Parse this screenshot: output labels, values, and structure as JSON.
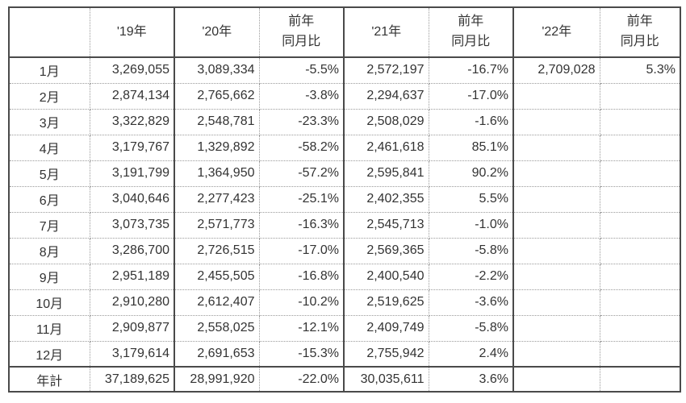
{
  "chart_data": {
    "type": "table",
    "columns": [
      "",
      "'19年",
      "'20年",
      "前年\n同月比",
      "'21年",
      "前年\n同月比",
      "'22年",
      "前年\n同月比"
    ],
    "rows": [
      {
        "label": "1月",
        "values": [
          "3,269,055",
          "3,089,334",
          "-5.5%",
          "2,572,197",
          "-16.7%",
          "2,709,028",
          "5.3%"
        ]
      },
      {
        "label": "2月",
        "values": [
          "2,874,134",
          "2,765,662",
          "-3.8%",
          "2,294,637",
          "-17.0%",
          "",
          ""
        ]
      },
      {
        "label": "3月",
        "values": [
          "3,322,829",
          "2,548,781",
          "-23.3%",
          "2,508,029",
          "-1.6%",
          "",
          ""
        ]
      },
      {
        "label": "4月",
        "values": [
          "3,179,767",
          "1,329,892",
          "-58.2%",
          "2,461,618",
          "85.1%",
          "",
          ""
        ]
      },
      {
        "label": "5月",
        "values": [
          "3,191,799",
          "1,364,950",
          "-57.2%",
          "2,595,841",
          "90.2%",
          "",
          ""
        ]
      },
      {
        "label": "6月",
        "values": [
          "3,040,646",
          "2,277,423",
          "-25.1%",
          "2,402,355",
          "5.5%",
          "",
          ""
        ]
      },
      {
        "label": "7月",
        "values": [
          "3,073,735",
          "2,571,773",
          "-16.3%",
          "2,545,713",
          "-1.0%",
          "",
          ""
        ]
      },
      {
        "label": "8月",
        "values": [
          "3,286,700",
          "2,726,515",
          "-17.0%",
          "2,569,365",
          "-5.8%",
          "",
          ""
        ]
      },
      {
        "label": "9月",
        "values": [
          "2,951,189",
          "2,455,505",
          "-16.8%",
          "2,400,540",
          "-2.2%",
          "",
          ""
        ]
      },
      {
        "label": "10月",
        "values": [
          "2,910,280",
          "2,612,407",
          "-10.2%",
          "2,519,625",
          "-3.6%",
          "",
          ""
        ]
      },
      {
        "label": "11月",
        "values": [
          "2,909,877",
          "2,558,025",
          "-12.1%",
          "2,409,749",
          "-5.8%",
          "",
          ""
        ]
      },
      {
        "label": "12月",
        "values": [
          "3,179,614",
          "2,691,653",
          "-15.3%",
          "2,755,942",
          "2.4%",
          "",
          ""
        ]
      },
      {
        "label": "年計",
        "is_total": true,
        "values": [
          "37,189,625",
          "28,991,920",
          "-22.0%",
          "30,035,611",
          "3.6%",
          "",
          ""
        ]
      }
    ]
  },
  "colors": {
    "background": "#ffffff",
    "text": "#333333",
    "border_solid": "#4a4a4a",
    "border_dotted": "#9a9a9a"
  }
}
